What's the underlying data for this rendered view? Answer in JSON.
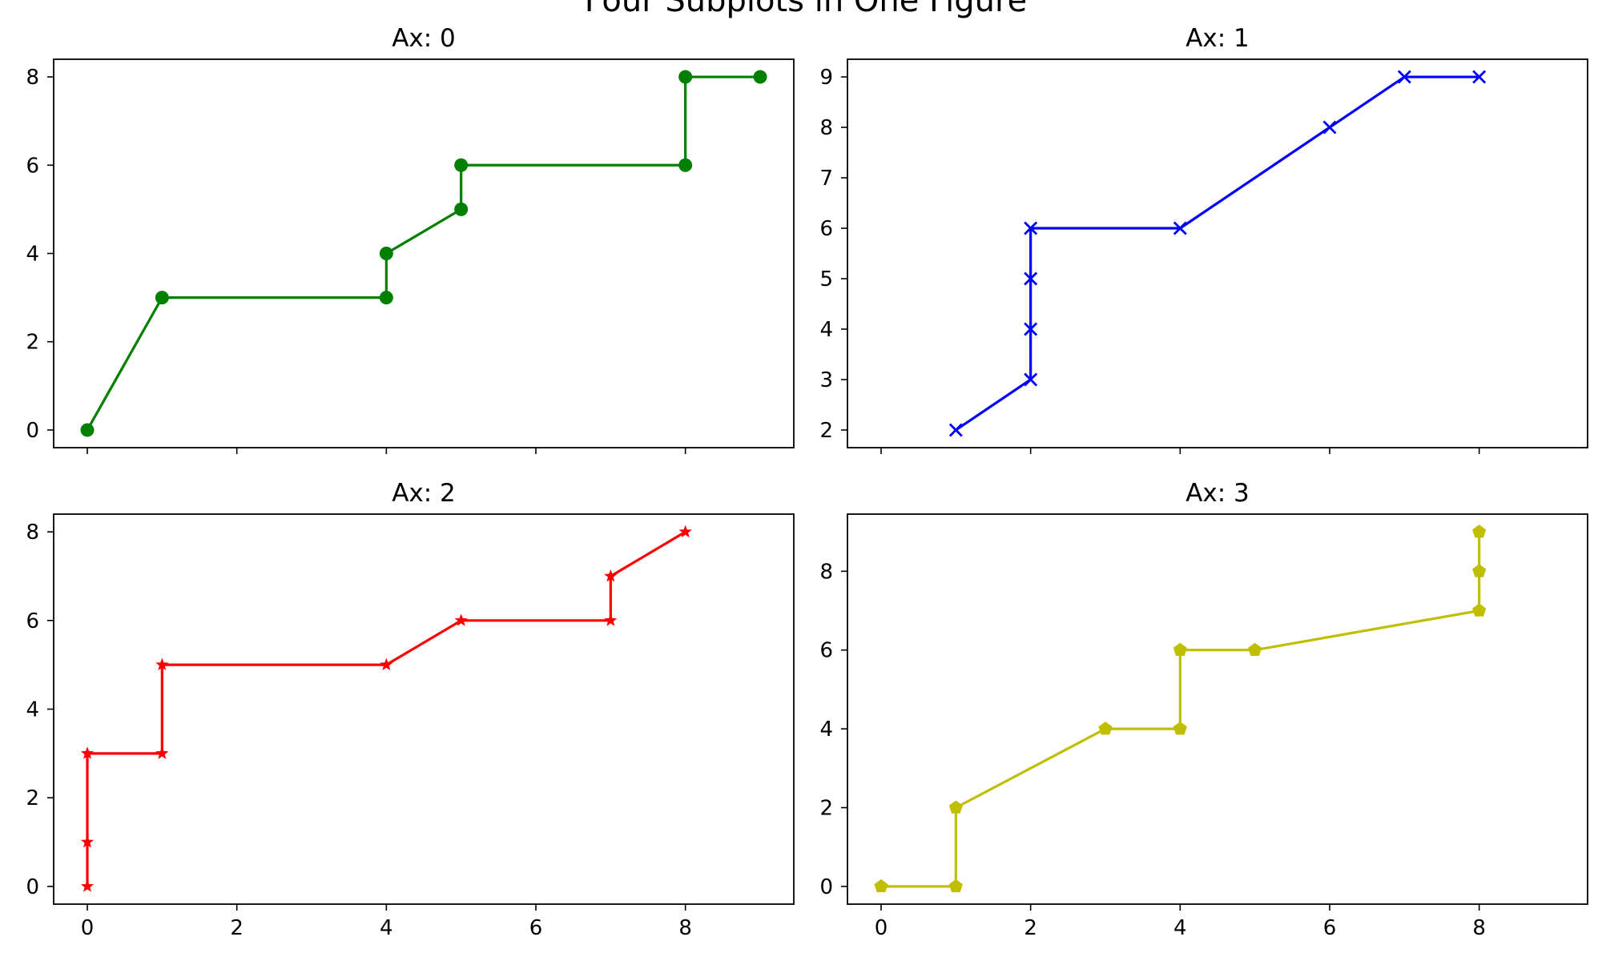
{
  "figure_title": "Four Subplots in One Figure",
  "chart_data": [
    {
      "type": "line",
      "title": "Ax: 0",
      "xlabel": "",
      "ylabel": "",
      "color": "#008000",
      "marker": "circle",
      "x": [
        0,
        1,
        4,
        4,
        5,
        5,
        8,
        8,
        9
      ],
      "y": [
        0,
        3,
        3,
        4,
        5,
        6,
        6,
        8,
        8
      ],
      "xlim": [
        -0.45,
        9.45
      ],
      "ylim": [
        -0.4,
        8.4
      ],
      "xticks": [
        0,
        2,
        4,
        6,
        8
      ],
      "yticks": [
        0,
        2,
        4,
        6,
        8
      ],
      "show_xtick_labels": false,
      "grid": false
    },
    {
      "type": "line",
      "title": "Ax: 1",
      "xlabel": "",
      "ylabel": "",
      "color": "#0000ff",
      "marker": "x",
      "x": [
        1,
        2,
        2,
        2,
        2,
        4,
        6,
        7,
        8
      ],
      "y": [
        2,
        3,
        4,
        5,
        6,
        6,
        8,
        9,
        9
      ],
      "xlim": [
        -0.45,
        9.45
      ],
      "ylim": [
        1.65,
        9.35
      ],
      "xticks": [
        0,
        2,
        4,
        6,
        8
      ],
      "yticks": [
        2,
        3,
        4,
        5,
        6,
        7,
        8,
        9
      ],
      "show_xtick_labels": false,
      "grid": false
    },
    {
      "type": "line",
      "title": "Ax: 2",
      "xlabel": "",
      "ylabel": "",
      "color": "#ff0000",
      "marker": "star",
      "x": [
        0,
        0,
        0,
        1,
        1,
        4,
        5,
        7,
        7,
        8
      ],
      "y": [
        0,
        1,
        3,
        3,
        5,
        5,
        6,
        6,
        7,
        8
      ],
      "xlim": [
        -0.45,
        9.45
      ],
      "ylim": [
        -0.4,
        8.4
      ],
      "xticks": [
        0,
        2,
        4,
        6,
        8
      ],
      "yticks": [
        0,
        2,
        4,
        6,
        8
      ],
      "show_xtick_labels": true,
      "grid": false
    },
    {
      "type": "line",
      "title": "Ax: 3",
      "xlabel": "",
      "ylabel": "",
      "color": "#bfbf00",
      "marker": "pentagon",
      "x": [
        0,
        1,
        1,
        3,
        4,
        4,
        5,
        8,
        8,
        8
      ],
      "y": [
        0,
        0,
        2,
        4,
        4,
        6,
        6,
        7,
        8,
        9
      ],
      "xlim": [
        -0.45,
        9.45
      ],
      "ylim": [
        -0.45,
        9.45
      ],
      "xticks": [
        0,
        2,
        4,
        6,
        8
      ],
      "yticks": [
        0,
        2,
        4,
        6,
        8
      ],
      "show_xtick_labels": true,
      "grid": false
    }
  ]
}
